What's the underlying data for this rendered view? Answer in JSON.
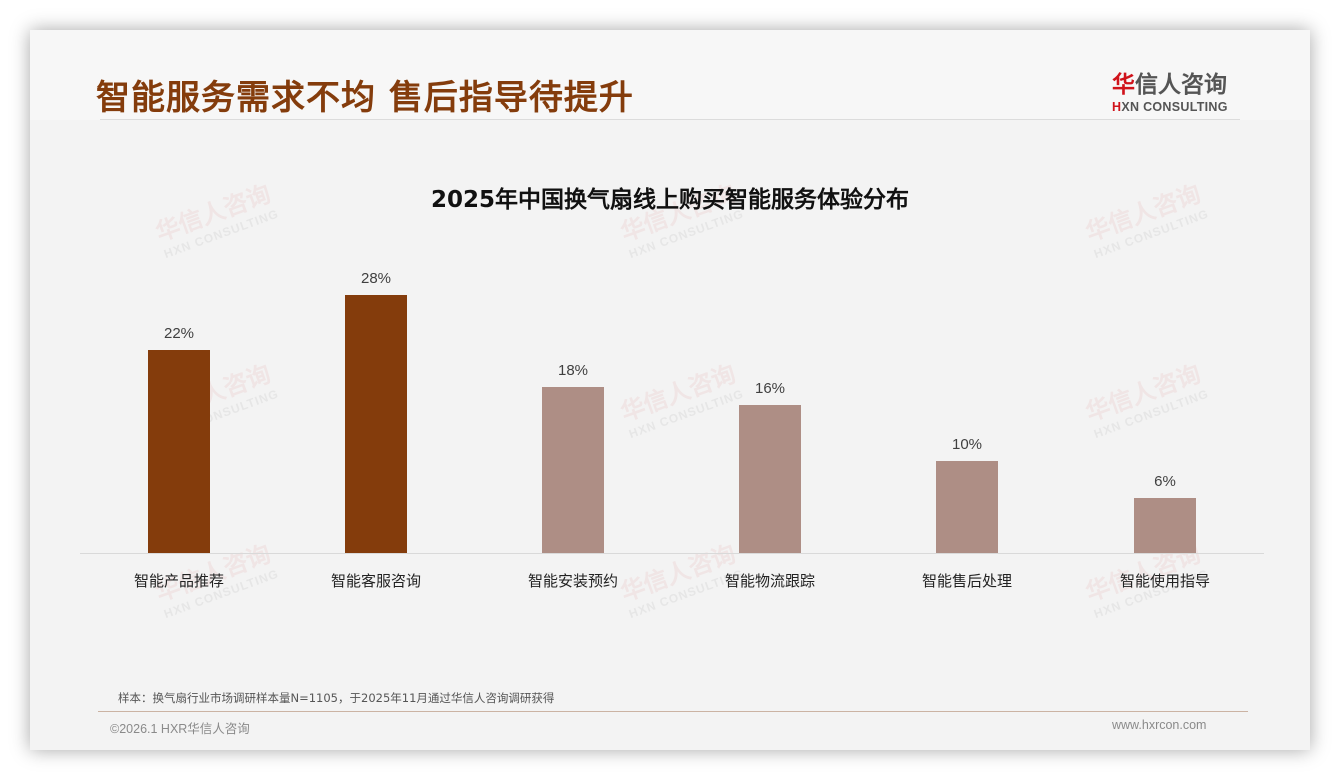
{
  "header": {
    "title": "智能服务需求不均 售后指导待提升",
    "logo": {
      "cn_mark": "华",
      "cn_rest": "信人咨询",
      "en_mark": "H",
      "en_rest": "XN CONSULTING"
    }
  },
  "watermark": {
    "cn": "华信人咨询",
    "en": "HXN CONSULTING"
  },
  "chart_data": {
    "type": "bar",
    "title": "2025年中国换气扇线上购买智能服务体验分布",
    "categories": [
      "智能产品推荐",
      "智能客服咨询",
      "智能安装预约",
      "智能物流跟踪",
      "智能售后处理",
      "智能使用指导"
    ],
    "values": [
      22,
      28,
      18,
      16,
      10,
      6
    ],
    "value_labels": [
      "22%",
      "28%",
      "18%",
      "16%",
      "10%",
      "6%"
    ],
    "unit": "%",
    "xlabel": "",
    "ylabel": "",
    "ylim": [
      0,
      35
    ],
    "grid": false,
    "legend": null,
    "colors": [
      "#843c0c",
      "#843c0c",
      "#ae8e85",
      "#ae8e85",
      "#ae8e85",
      "#ae8e85"
    ]
  },
  "footer": {
    "note": "样本：换气扇行业市场调研样本量N=1105，于2025年11月通过华信人咨询调研获得",
    "copyright": "©2026.1 HXR华信人咨询",
    "website": "www.hxrcon.com"
  }
}
